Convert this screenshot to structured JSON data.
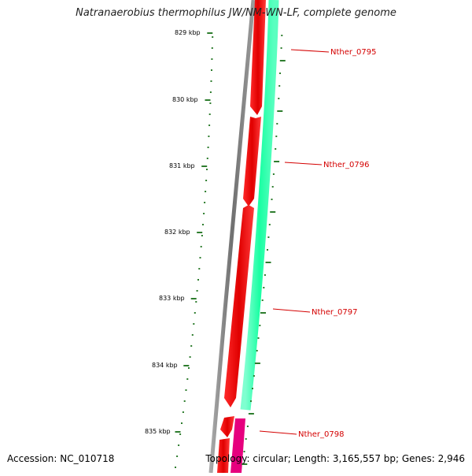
{
  "title": "Natranaerobius thermophilus JW/NM-WN-LF, complete genome",
  "footer": {
    "accession": "Accession: NC_010718",
    "summary": "Topology: circular; Length: 3,165,557 bp; Genes: 2,946"
  },
  "ruler": {
    "labels": [
      "829 kbp",
      "830 kbp",
      "831 kbp",
      "832 kbp",
      "833 kbp",
      "834 kbp",
      "835 kbp"
    ],
    "color": "#2e7d2e"
  },
  "genes": {
    "labels": [
      "Nther_0795",
      "Nther_0796",
      "Nther_0797",
      "Nther_0798"
    ],
    "label_color": "#d40000"
  },
  "colors": {
    "backbone": "#808080",
    "forward_cds": "#ff0000",
    "reverse_cds": "#1affa3",
    "other_feature": "#e6007e"
  }
}
